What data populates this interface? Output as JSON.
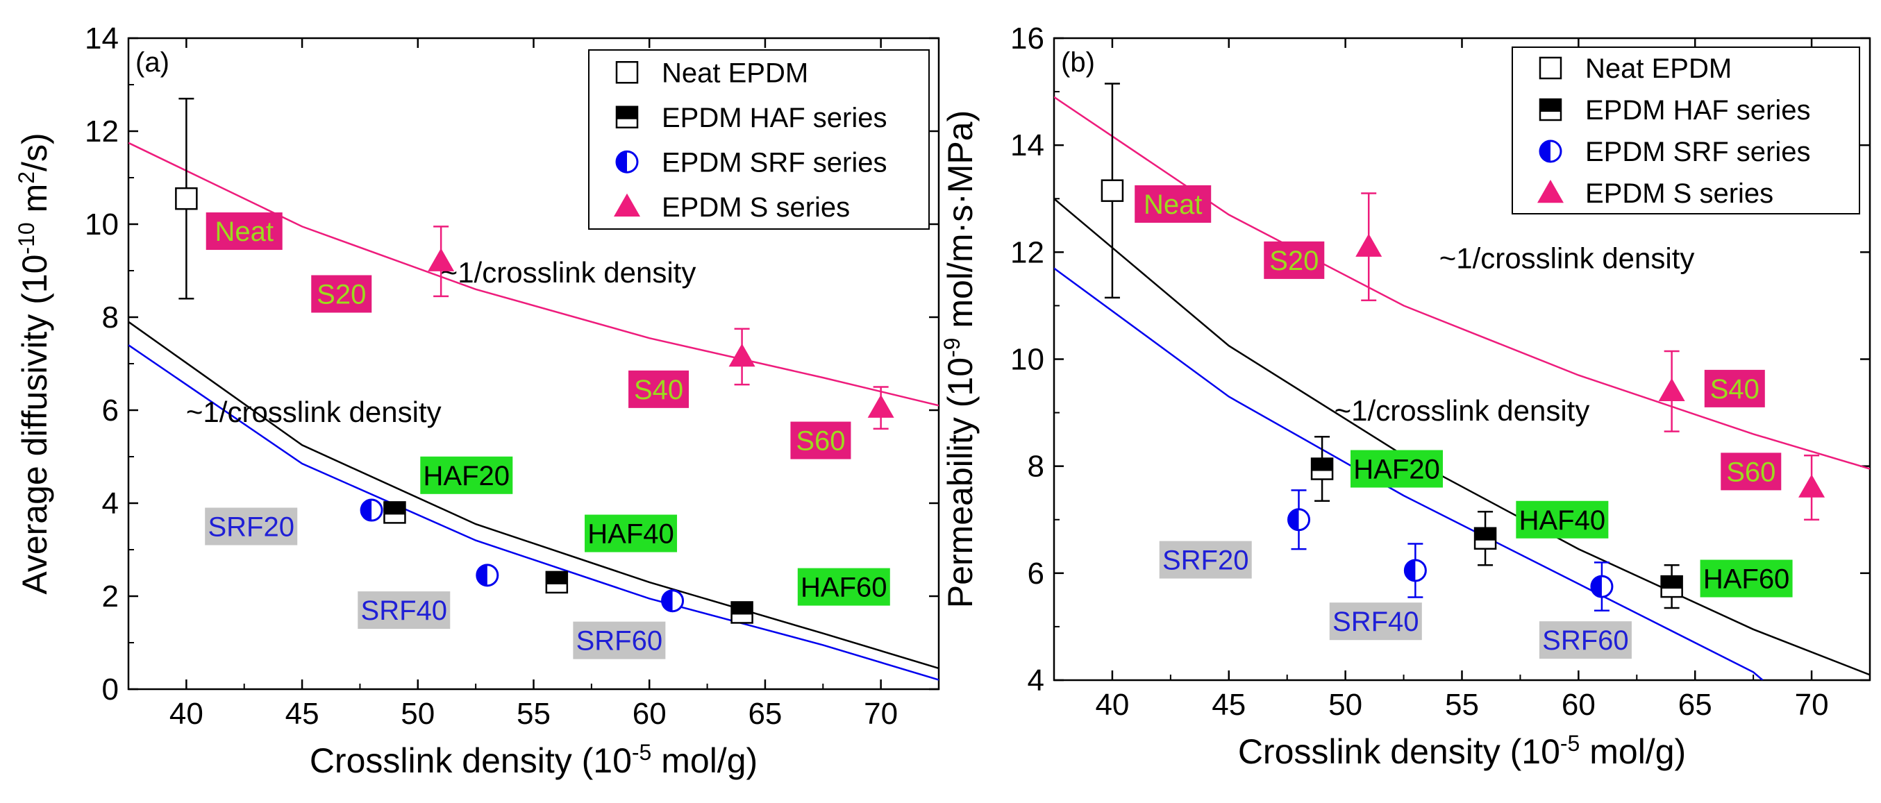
{
  "chart_data": [
    {
      "type": "scatter",
      "panel_label": "(a)",
      "xlabel": {
        "main": "Crosslink density (10",
        "sup": "-5",
        "rest": " mol/g)"
      },
      "ylabel": {
        "main": "Average diffusivity (10",
        "sup": "-10",
        "rest": " m",
        "sup2": "2",
        "rest2": "/s)"
      },
      "xlim": [
        37.5,
        72.5
      ],
      "ylim": [
        0,
        14
      ],
      "xticks": [
        40,
        45,
        50,
        55,
        60,
        65,
        70
      ],
      "yticks": [
        0,
        2,
        4,
        6,
        8,
        10,
        12,
        14
      ],
      "legend": {
        "position": "top-right",
        "entries": [
          {
            "name": "Neat EPDM",
            "marker": "open-square"
          },
          {
            "name": "EPDM HAF series",
            "marker": "half-square"
          },
          {
            "name": "EPDM SRF series",
            "marker": "half-circle"
          },
          {
            "name": "EPDM S series",
            "marker": "triangle"
          }
        ]
      },
      "series": [
        {
          "name": "Neat EPDM",
          "marker": "open-square",
          "color": "#000000",
          "points": [
            {
              "x": 40,
              "y": 10.55,
              "err": 2.15
            }
          ]
        },
        {
          "name": "EPDM HAF series",
          "marker": "half-square",
          "color": "#000000",
          "points": [
            {
              "x": 49,
              "y": 3.8,
              "err": 0.2
            },
            {
              "x": 56,
              "y": 2.3,
              "err": 0.15
            },
            {
              "x": 64,
              "y": 1.65,
              "err": 0.15
            }
          ]
        },
        {
          "name": "EPDM SRF series",
          "marker": "half-circle",
          "color": "#0000ee",
          "points": [
            {
              "x": 48,
              "y": 3.85,
              "err": 0.15
            },
            {
              "x": 53,
              "y": 2.45,
              "err": 0.15
            },
            {
              "x": 61,
              "y": 1.9,
              "err": 0.15
            }
          ]
        },
        {
          "name": "EPDM S series",
          "marker": "triangle",
          "color": "#ee1c7c",
          "points": [
            {
              "x": 51,
              "y": 9.2,
              "err": 0.75
            },
            {
              "x": 64,
              "y": 7.15,
              "err": 0.6
            },
            {
              "x": 70,
              "y": 6.05,
              "err": 0.45
            }
          ]
        }
      ],
      "fits": [
        {
          "color": "#ee1c7c",
          "x": [
            37.5,
            45,
            52.5,
            60,
            67.5,
            72.5
          ],
          "y": [
            11.75,
            9.95,
            8.6,
            7.55,
            6.7,
            6.1
          ]
        },
        {
          "color": "#000000",
          "x": [
            37.5,
            45,
            52.5,
            60,
            67.5,
            72.5
          ],
          "y": [
            7.9,
            5.25,
            3.55,
            2.3,
            1.2,
            0.45
          ]
        },
        {
          "color": "#0000ee",
          "x": [
            37.5,
            45,
            52.5,
            60,
            67.5,
            72.5
          ],
          "y": [
            7.4,
            4.85,
            3.2,
            1.95,
            0.95,
            0.2
          ]
        }
      ],
      "annotations": [
        {
          "text": "~1/crosslink density",
          "x": 56.5,
          "y": 8.75
        },
        {
          "text": "~1/crosslink density",
          "x": 45.5,
          "y": 5.75
        }
      ],
      "labels": [
        {
          "text": "Neat",
          "style": "pink",
          "x": 42.5,
          "y": 9.85
        },
        {
          "text": "S20",
          "style": "pink",
          "x": 46.7,
          "y": 8.5
        },
        {
          "text": "S40",
          "style": "pink",
          "x": 60.4,
          "y": 6.45
        },
        {
          "text": "S60",
          "style": "pink",
          "x": 67.4,
          "y": 5.35
        },
        {
          "text": "HAF20",
          "style": "green",
          "x": 52.1,
          "y": 4.6
        },
        {
          "text": "HAF40",
          "style": "green",
          "x": 59.2,
          "y": 3.35
        },
        {
          "text": "HAF60",
          "style": "green",
          "x": 68.4,
          "y": 2.2
        },
        {
          "text": "SRF20",
          "style": "gray",
          "x": 42.8,
          "y": 3.5
        },
        {
          "text": "SRF40",
          "style": "gray",
          "x": 49.4,
          "y": 1.7
        },
        {
          "text": "SRF60",
          "style": "gray",
          "x": 58.7,
          "y": 1.05
        }
      ]
    },
    {
      "type": "scatter",
      "panel_label": "(b)",
      "xlabel": {
        "main": "Crosslink density (10",
        "sup": "-5",
        "rest": " mol/g)"
      },
      "ylabel": {
        "main": "Permeability (10",
        "sup": "-9",
        "rest": " mol/m·s·MPa)",
        "sup2": "",
        "rest2": ""
      },
      "xlim": [
        37.5,
        72.5
      ],
      "ylim": [
        4,
        16
      ],
      "xticks": [
        40,
        45,
        50,
        55,
        60,
        65,
        70
      ],
      "yticks": [
        4,
        6,
        8,
        10,
        12,
        14,
        16
      ],
      "legend": {
        "position": "top-right",
        "entries": [
          {
            "name": "Neat EPDM",
            "marker": "open-square"
          },
          {
            "name": "EPDM HAF series",
            "marker": "half-square"
          },
          {
            "name": "EPDM SRF series",
            "marker": "half-circle"
          },
          {
            "name": "EPDM S series",
            "marker": "triangle"
          }
        ]
      },
      "series": [
        {
          "name": "Neat EPDM",
          "marker": "open-square",
          "color": "#000000",
          "points": [
            {
              "x": 40,
              "y": 13.15,
              "err": 2.0
            }
          ]
        },
        {
          "name": "EPDM HAF series",
          "marker": "half-square",
          "color": "#000000",
          "points": [
            {
              "x": 49,
              "y": 7.95,
              "err": 0.6
            },
            {
              "x": 56,
              "y": 6.65,
              "err": 0.5
            },
            {
              "x": 64,
              "y": 5.75,
              "err": 0.4
            }
          ]
        },
        {
          "name": "EPDM SRF series",
          "marker": "half-circle",
          "color": "#0000ee",
          "points": [
            {
              "x": 48,
              "y": 7.0,
              "err": 0.55
            },
            {
              "x": 53,
              "y": 6.05,
              "err": 0.5
            },
            {
              "x": 61,
              "y": 5.75,
              "err": 0.45
            }
          ]
        },
        {
          "name": "EPDM S series",
          "marker": "triangle",
          "color": "#ee1c7c",
          "points": [
            {
              "x": 51,
              "y": 12.1,
              "err": 1.0
            },
            {
              "x": 64,
              "y": 9.4,
              "err": 0.75
            },
            {
              "x": 70,
              "y": 7.6,
              "err": 0.6
            }
          ]
        }
      ],
      "fits": [
        {
          "color": "#ee1c7c",
          "x": [
            37.5,
            45,
            52.5,
            60,
            67.5,
            72.5
          ],
          "y": [
            14.9,
            12.7,
            11.0,
            9.7,
            8.6,
            7.95
          ]
        },
        {
          "color": "#000000",
          "x": [
            37.5,
            45,
            52.5,
            60,
            67.5,
            72.5
          ],
          "y": [
            13.0,
            10.25,
            8.2,
            6.45,
            4.95,
            4.1
          ]
        },
        {
          "color": "#0000ee",
          "x": [
            37.5,
            45,
            52.5,
            60,
            67.5,
            67.9
          ],
          "y": [
            11.7,
            9.3,
            7.45,
            5.8,
            4.15,
            4.0
          ]
        }
      ],
      "annotations": [
        {
          "text": "~1/crosslink density",
          "x": 59.5,
          "y": 11.7
        },
        {
          "text": "~1/crosslink density",
          "x": 55.0,
          "y": 8.85
        }
      ],
      "labels": [
        {
          "text": "Neat",
          "style": "pink",
          "x": 42.6,
          "y": 12.9
        },
        {
          "text": "S20",
          "style": "pink",
          "x": 47.8,
          "y": 11.85
        },
        {
          "text": "S40",
          "style": "pink",
          "x": 66.7,
          "y": 9.45
        },
        {
          "text": "S60",
          "style": "pink",
          "x": 67.4,
          "y": 7.9
        },
        {
          "text": "HAF20",
          "style": "green",
          "x": 52.2,
          "y": 7.95
        },
        {
          "text": "HAF40",
          "style": "green",
          "x": 59.3,
          "y": 7.0
        },
        {
          "text": "HAF60",
          "style": "green",
          "x": 67.2,
          "y": 5.9
        },
        {
          "text": "SRF20",
          "style": "gray",
          "x": 44.0,
          "y": 6.25
        },
        {
          "text": "SRF40",
          "style": "gray",
          "x": 51.3,
          "y": 5.1
        },
        {
          "text": "SRF60",
          "style": "gray",
          "x": 60.3,
          "y": 4.75
        }
      ]
    }
  ],
  "colors": {
    "pink": "#ee1c7c",
    "pink_box": "#e41b7b",
    "pink_box_text": "#9cdb1e",
    "green_box": "#22e022",
    "green_box_text": "#000000",
    "gray_box": "#c4c4c4",
    "gray_box_text": "#1f1fd6",
    "blue": "#0000ee"
  }
}
